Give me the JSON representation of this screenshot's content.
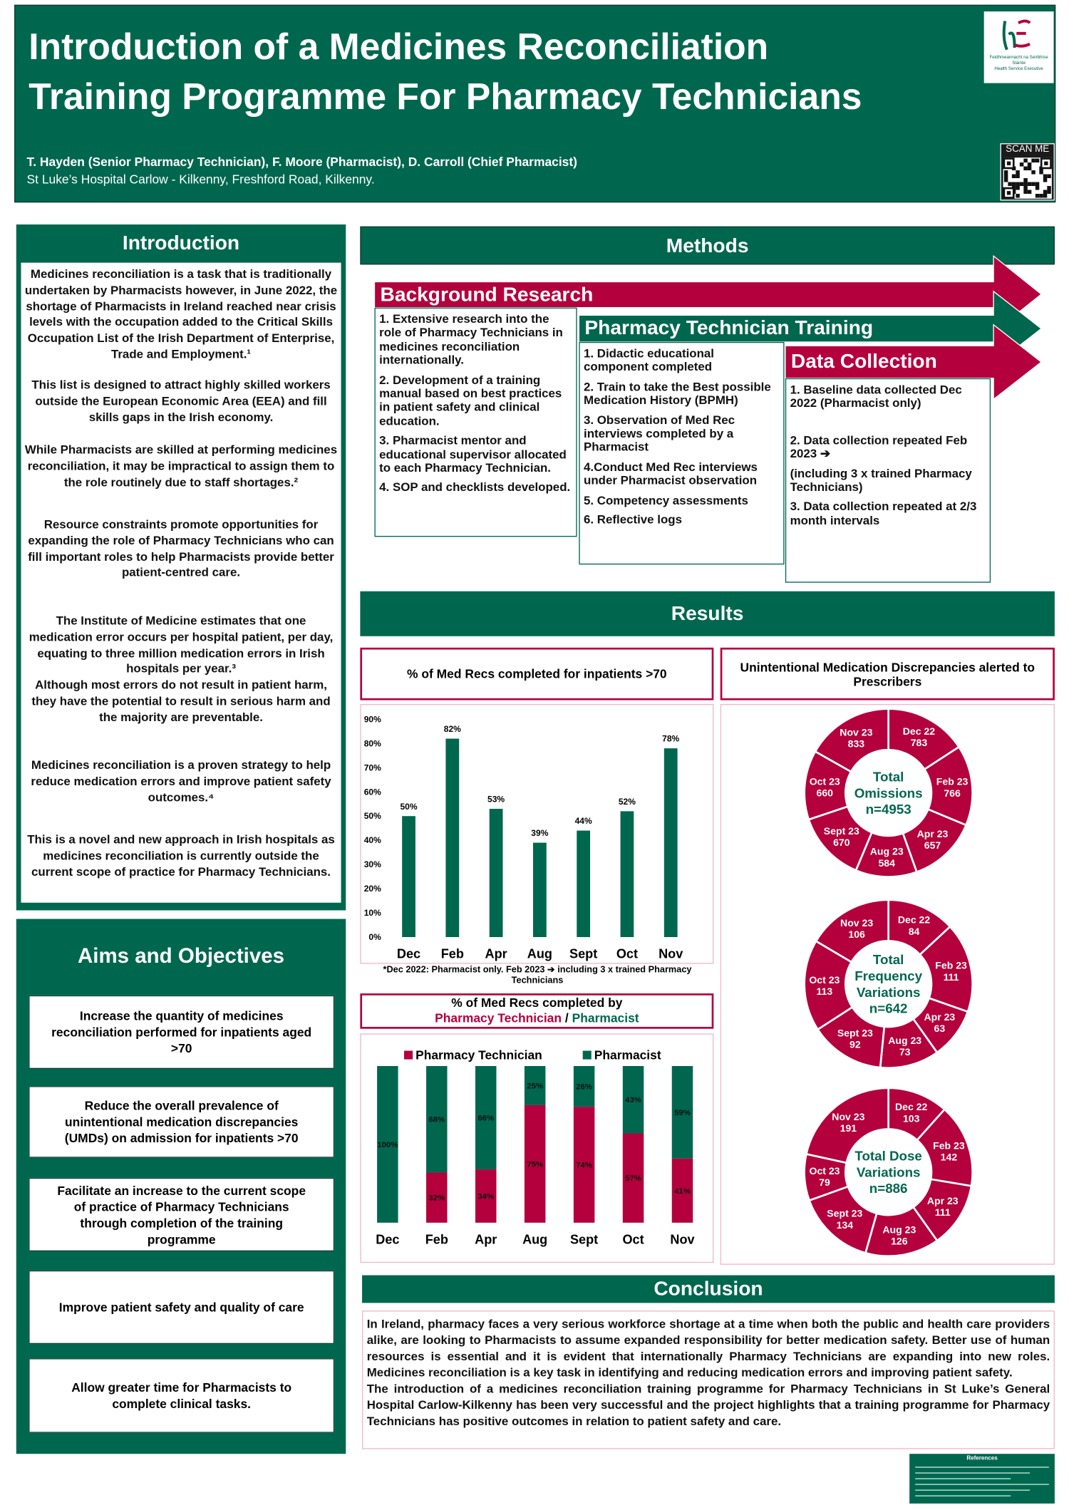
{
  "header": {
    "title_lines": [
      "Introduction of a Medicines Reconciliation",
      "Training Programme For Pharmacy Technicians"
    ],
    "authors": "T. Hayden (Senior Pharmacy Technician), F. Moore (Pharmacist), D. Carroll (Chief Pharmacist)",
    "affiliation": "St Luke’s Hospital Carlow - Kilkenny, Freshford Road, Kilkenny.",
    "logo_text": [
      "Feidhmeannacht na Seirbhíse Sláinte",
      "Health Service Executive"
    ],
    "scan_label": "SCAN ME"
  },
  "introduction": {
    "heading": "Introduction",
    "paragraphs": [
      "Medicines reconciliation is a task that is traditionally undertaken by Pharmacists however, in June 2022, the shortage of Pharmacists in Ireland reached near crisis levels with the occupation added to the Critical Skills Occupation List of the Irish Department of Enterprise, Trade and Employment.¹",
      "This list is designed to attract highly skilled workers outside the European Economic Area (EEA) and fill skills gaps in the Irish economy.",
      "While Pharmacists are skilled at performing medicines reconciliation, it may be impractical to assign them to the role routinely due to staff shortages.²",
      "Resource constraints promote opportunities for expanding the role of Pharmacy Technicians who can fill important roles to help Pharmacists provide better patient-centred care.",
      "The Institute of Medicine estimates that one medication error occurs per hospital patient, per day, equating to three million medication errors in Irish hospitals per year.³",
      "Although most errors do not result in patient harm, they have the potential to result in serious harm and the majority are preventable.",
      "Medicines reconciliation is a proven strategy to help reduce medication errors and improve patient safety outcomes.⁴",
      "This is a novel and new approach in Irish hospitals as medicines reconciliation is currently outside the current scope of practice for Pharmacy Technicians."
    ]
  },
  "aims": {
    "heading": "Aims and Objectives",
    "items": [
      "Increase the quantity of medicines reconciliation performed for inpatients aged >70",
      "Reduce the overall prevalence of unintentional medication discrepancies (UMDs) on admission for inpatients >70",
      "Facilitate an increase to the current scope of practice of Pharmacy Technicians through completion of the training programme",
      "Improve patient safety and quality of care",
      "Allow greater time for Pharmacists to complete clinical tasks."
    ]
  },
  "methods": {
    "heading": "Methods",
    "steps": [
      {
        "title": "Background Research",
        "items": [
          "1. Extensive research into the role of Pharmacy Technicians in medicines reconciliation internationally.",
          "2. Development of a training manual based on best practices in patient safety and clinical education.",
          "3. Pharmacist mentor and educational supervisor allocated to each Pharmacy Technician.",
          "4. SOP and checklists developed."
        ]
      },
      {
        "title": "Pharmacy Technician Training",
        "items": [
          "1. Didactic educational component completed",
          "2. Train to take the Best possible Medication History (BPMH)",
          "3. Observation of Med Rec interviews completed by a Pharmacist",
          "4.Conduct Med Rec interviews under Pharmacist observation",
          "5. Competency assessments",
          "6. Reflective logs"
        ]
      },
      {
        "title": "Data Collection",
        "items": [
          "1. Baseline data collected Dec 2022 (Pharmacist only)",
          "2. Data collection repeated Feb 2023 ➔",
          "(including 3 x trained Pharmacy Technicians)",
          "3. Data collection repeated at 2/3 month intervals"
        ]
      }
    ]
  },
  "results": {
    "heading": "Results",
    "panel_title": "Unintentional Medication Discrepancies alerted to Prescribers"
  },
  "chart_data": [
    {
      "type": "bar",
      "title": "% of Med Recs completed for inpatients >70",
      "note": "*Dec 2022: Pharmacist only. Feb 2023 ➔ including 3 x trained Pharmacy Technicians",
      "categories": [
        "Dec",
        "Feb",
        "Apr",
        "Aug",
        "Sept",
        "Oct",
        "Nov"
      ],
      "values": [
        50,
        82,
        53,
        39,
        44,
        52,
        78
      ],
      "value_labels": [
        "50%",
        "82%",
        "53%",
        "39%",
        "44%",
        "52%",
        "78%"
      ],
      "color": "#00674f",
      "ylim": [
        0,
        90
      ],
      "yticks": [
        {
          "value": 0,
          "label": "0%"
        },
        {
          "value": 10,
          "label": "10%"
        },
        {
          "value": 20,
          "label": "20%"
        },
        {
          "value": 30,
          "label": "30%"
        },
        {
          "value": 40,
          "label": "40%"
        },
        {
          "value": 50,
          "label": "50%"
        },
        {
          "value": 60,
          "label": "60%"
        },
        {
          "value": 70,
          "label": "70%"
        },
        {
          "value": 80,
          "label": "80%"
        },
        {
          "value": 90,
          "label": "90%"
        }
      ],
      "grid": false
    },
    {
      "type": "bar",
      "stacked": true,
      "title": "% of Med Recs completed by",
      "subtitle": [
        "Pharmacy Technician",
        "/",
        "Pharmacist"
      ],
      "categories": [
        "Dec",
        "Feb",
        "Apr",
        "Aug",
        "Sept",
        "Oct",
        "Nov"
      ],
      "series": [
        {
          "name": "Pharmacy Technician",
          "color": "#b4003c",
          "values": [
            0,
            32,
            34,
            75,
            74,
            57,
            41
          ],
          "value_labels": [
            null,
            "32%",
            "34%",
            "75%",
            "74%",
            "57%",
            "41%"
          ]
        },
        {
          "name": "Pharmacist",
          "color": "#00674f",
          "values": [
            100,
            68,
            66,
            25,
            26,
            43,
            59
          ],
          "value_labels": [
            "100%",
            "68%",
            "66%",
            "25%",
            "26%",
            "43%",
            "59%"
          ]
        }
      ],
      "ylim": [
        0,
        100
      ],
      "legend": "top",
      "grid": false
    },
    {
      "type": "donut",
      "center_label": [
        "Total",
        "Omissions",
        "n=4953"
      ],
      "color": "#b4003c",
      "categories": [
        "Dec 22",
        "Feb 23",
        "Apr 23",
        "Aug 23",
        "Sept 23",
        "Oct 23",
        "Nov 23"
      ],
      "values": [
        783,
        766,
        657,
        584,
        670,
        660,
        833
      ]
    },
    {
      "type": "donut",
      "center_label": [
        "Total",
        "Frequency",
        "Variations",
        "n=642"
      ],
      "color": "#b4003c",
      "categories": [
        "Dec 22",
        "Feb 23",
        "Apr 23",
        "Aug 23",
        "Sept 23",
        "Oct 23",
        "Nov 23"
      ],
      "values": [
        84,
        111,
        63,
        73,
        92,
        113,
        106
      ]
    },
    {
      "type": "donut",
      "center_label": [
        "Total Dose",
        "Variations",
        "n=886"
      ],
      "color": "#b4003c",
      "categories": [
        "Dec 22",
        "Feb 23",
        "Apr 23",
        "Aug 23",
        "Sept 23",
        "Oct 23",
        "Nov 23"
      ],
      "values": [
        103,
        142,
        111,
        126,
        134,
        79,
        191
      ]
    }
  ],
  "conclusion": {
    "heading": "Conclusion",
    "paragraphs": [
      "In Ireland, pharmacy faces a very serious workforce shortage at a time when both the public and health care providers alike, are looking to Pharmacists to assume expanded responsibility for better medication safety. Better use of human resources is essential and it is evident that internationally Pharmacy Technicians are expanding into new roles. Medicines reconciliation is a key task in identifying and reducing medication errors and improving patient safety.",
      "The introduction of a medicines reconciliation training programme for Pharmacy Technicians in St Luke’s General Hospital Carlow-Kilkenny has been very successful and the project highlights that a training programme for Pharmacy Technicians has positive outcomes in relation to patient safety and care."
    ]
  },
  "references": {
    "heading": "References"
  }
}
